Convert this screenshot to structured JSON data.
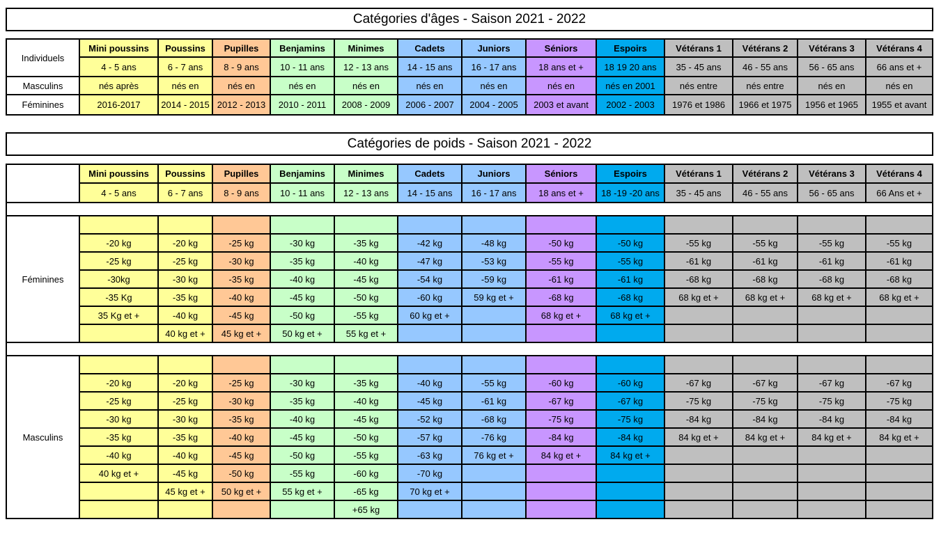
{
  "colors": [
    "#ffff99",
    "#ffff99",
    "#ffc896",
    "#c8ffc8",
    "#c8ffc8",
    "#96c8ff",
    "#96c8ff",
    "#c896ff",
    "#00aaee",
    "#bfbfbf",
    "#bfbfbf",
    "#bfbfbf",
    "#bfbfbf"
  ],
  "ages": {
    "title": "Catégories d'âges - Saison 2021 - 2022",
    "row_labels": [
      "Individuels",
      "Masculins",
      "Féminines"
    ],
    "categories": [
      {
        "name": "Mini poussins",
        "ages": "4 - 5 ans",
        "nes": "nés après",
        "years": "2016-2017"
      },
      {
        "name": "Poussins",
        "ages": "6 - 7 ans",
        "nes": "nés en",
        "years": "2014 - 2015"
      },
      {
        "name": "Pupilles",
        "ages": "8 - 9 ans",
        "nes": "nés en",
        "years": "2012 - 2013"
      },
      {
        "name": "Benjamins",
        "ages": "10 - 11 ans",
        "nes": "nés en",
        "years": "2010 - 2011"
      },
      {
        "name": "Minimes",
        "ages": "12 - 13 ans",
        "nes": "nés en",
        "years": "2008 - 2009"
      },
      {
        "name": "Cadets",
        "ages": "14 - 15 ans",
        "nes": "nés en",
        "years": "2006 - 2007"
      },
      {
        "name": "Juniors",
        "ages": "16 - 17 ans",
        "nes": "nés en",
        "years": "2004 - 2005"
      },
      {
        "name": "Séniors",
        "ages": "18 ans et +",
        "nes": "nés en",
        "years": "2003 et avant"
      },
      {
        "name": "Espoirs",
        "ages": "18 19 20 ans",
        "nes": "nés en 2001",
        "years": "2002 - 2003"
      },
      {
        "name": "Vétérans 1",
        "ages": "35 - 45 ans",
        "nes": "nés entre",
        "years": "1976 et 1986"
      },
      {
        "name": "Vétérans 2",
        "ages": "46 - 55 ans",
        "nes": "nés entre",
        "years": "1966 et 1975"
      },
      {
        "name": "Vétérans 3",
        "ages": "56 - 65 ans",
        "nes": "nés en",
        "years": "1956 et 1965"
      },
      {
        "name": "Vétérans 4",
        "ages": "66 ans et +",
        "nes": "nés en",
        "years": "1955 et avant"
      }
    ]
  },
  "poids": {
    "title": "Catégories de poids - Saison 2021 - 2022",
    "categories": [
      {
        "name": "Mini poussins",
        "ages": "4 - 5 ans"
      },
      {
        "name": "Poussins",
        "ages": "6 - 7 ans"
      },
      {
        "name": "Pupilles",
        "ages": "8 - 9 ans"
      },
      {
        "name": "Benjamins",
        "ages": "10 - 11 ans"
      },
      {
        "name": "Minimes",
        "ages": "12 - 13 ans"
      },
      {
        "name": "Cadets",
        "ages": "14 - 15 ans"
      },
      {
        "name": "Juniors",
        "ages": "16 - 17 ans"
      },
      {
        "name": "Séniors",
        "ages": "18 ans et +"
      },
      {
        "name": "Espoirs",
        "ages": "18 -19 -20 ans"
      },
      {
        "name": "Vétérans 1",
        "ages": "35 - 45 ans"
      },
      {
        "name": "Vétérans 2",
        "ages": "46 - 55 ans"
      },
      {
        "name": "Vétérans 3",
        "ages": "56 - 65 ans"
      },
      {
        "name": "Vétérans 4",
        "ages": "66 Ans et +"
      }
    ],
    "feminines": {
      "label": "Féminines",
      "rows": [
        [
          "",
          "",
          "",
          "",
          "",
          "",
          "",
          "",
          "",
          "",
          "",
          "",
          ""
        ],
        [
          "-20 kg",
          "-20 kg",
          "-25 kg",
          "-30 kg",
          "-35 kg",
          "-42 kg",
          "-48 kg",
          "-50 kg",
          "-50 kg",
          "-55 kg",
          "-55 kg",
          "-55 kg",
          "-55 kg"
        ],
        [
          "-25 kg",
          "-25 kg",
          "-30 kg",
          "-35 kg",
          "-40 kg",
          "-47 kg",
          "-53 kg",
          "-55 kg",
          "-55 kg",
          "-61 kg",
          "-61 kg",
          "-61 kg",
          "-61 kg"
        ],
        [
          "-30kg",
          "-30 kg",
          "-35 kg",
          "-40 kg",
          "-45 kg",
          "-54 kg",
          "-59 kg",
          "-61 kg",
          "-61 kg",
          "-68 kg",
          "-68 kg",
          "-68 kg",
          "-68 kg"
        ],
        [
          "-35 Kg",
          "-35 kg",
          "-40 kg",
          "-45 kg",
          "-50 kg",
          "-60 kg",
          "59 kg et +",
          "-68 kg",
          "-68 kg",
          "68 kg et +",
          "68 kg et +",
          "68 kg et +",
          "68 kg et +"
        ],
        [
          "35 Kg et +",
          "-40 kg",
          "-45 kg",
          "-50 kg",
          "-55 kg",
          "60 kg et +",
          "",
          "68 kg et +",
          "68 kg et +",
          "",
          "",
          "",
          ""
        ],
        [
          "",
          "40 kg et +",
          "45 kg et +",
          "50 kg et +",
          "55 kg et +",
          "",
          "",
          "",
          "",
          "",
          "",
          "",
          ""
        ]
      ]
    },
    "masculins": {
      "label": "Masculins",
      "rows": [
        [
          "",
          "",
          "",
          "",
          "",
          "",
          "",
          "",
          "",
          "",
          "",
          "",
          ""
        ],
        [
          "-20 kg",
          "-20 kg",
          "-25 kg",
          "-30 kg",
          "-35 kg",
          "-40 kg",
          "-55 kg",
          "-60 kg",
          "-60 kg",
          "-67 kg",
          "-67 kg",
          "-67 kg",
          "-67 kg"
        ],
        [
          "-25 kg",
          "-25 kg",
          "-30 kg",
          "-35 kg",
          "-40 kg",
          "-45 kg",
          "-61 kg",
          "-67 kg",
          "-67 kg",
          "-75 kg",
          "-75 kg",
          "-75 kg",
          "-75 kg"
        ],
        [
          "-30 kg",
          "-30 kg",
          "-35 kg",
          "-40 kg",
          "-45 kg",
          "-52 kg",
          "-68 kg",
          "-75 kg",
          "-75 kg",
          "-84 kg",
          "-84 kg",
          "-84 kg",
          "-84 kg"
        ],
        [
          "-35 kg",
          "-35 kg",
          "-40 kg",
          "-45 kg",
          "-50 kg",
          "-57 kg",
          "-76 kg",
          "-84 kg",
          "-84 kg",
          "84 kg et +",
          "84 kg et +",
          "84 kg et +",
          "84 kg et +"
        ],
        [
          "-40 kg",
          "-40 kg",
          "-45 kg",
          "-50 kg",
          "-55 kg",
          "-63 kg",
          "76 kg et +",
          "84 kg et +",
          "84 kg et +",
          "",
          "",
          "",
          ""
        ],
        [
          "40 kg et +",
          "-45 kg",
          "-50 kg",
          "-55 kg",
          "-60 kg",
          "-70 kg",
          "",
          "",
          "",
          "",
          "",
          "",
          ""
        ],
        [
          "",
          "45 kg et +",
          "50 kg et +",
          "55 kg et +",
          "-65 kg",
          "70 kg et +",
          "",
          "",
          "",
          "",
          "",
          "",
          ""
        ],
        [
          "",
          "",
          "",
          "",
          "+65 kg",
          "",
          "",
          "",
          "",
          "",
          "",
          "",
          ""
        ]
      ]
    }
  }
}
